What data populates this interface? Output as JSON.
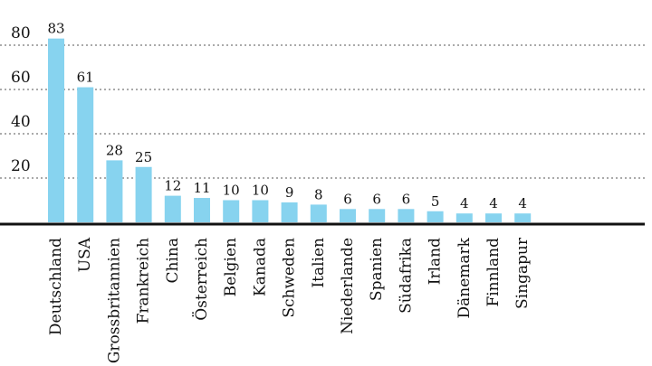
{
  "chart_data": {
    "type": "bar",
    "title": "",
    "xlabel": "",
    "ylabel": "",
    "ylim": [
      0,
      85
    ],
    "yticks": [
      20,
      40,
      60,
      80
    ],
    "grid": true,
    "bar_color": "#87d3ef",
    "categories": [
      "Deutschland",
      "USA",
      "Grossbritannien",
      "Frankreich",
      "China",
      "Österreich",
      "Belgien",
      "Kanada",
      "Schweden",
      "Italien",
      "Niederlande",
      "Spanien",
      "Südafrika",
      "Irland",
      "Dänemark",
      "Finnland",
      "Singapur"
    ],
    "values": [
      83,
      61,
      28,
      25,
      12,
      11,
      10,
      10,
      9,
      8,
      6,
      6,
      6,
      5,
      4,
      4,
      4
    ]
  }
}
